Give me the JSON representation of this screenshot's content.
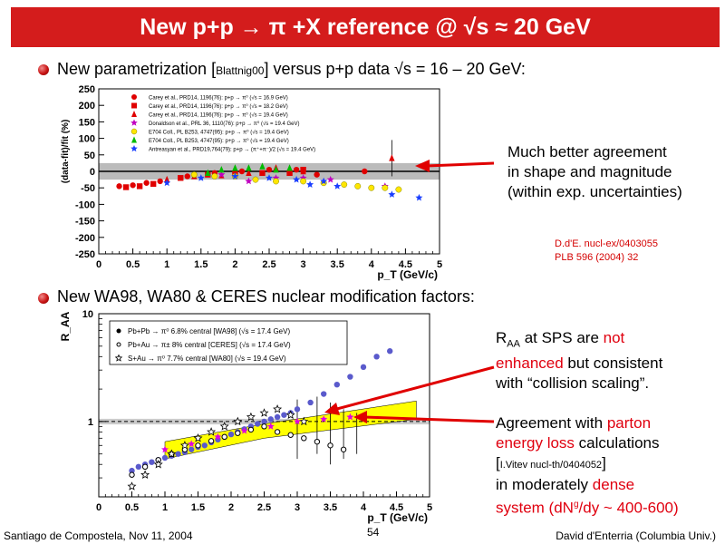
{
  "title": "New p+p → π +X reference @ √s ≈ 20 GeV",
  "bullets": [
    {
      "pre": "New parametrization [",
      "cite": "Blattnig00",
      "post": "] versus p+p data √s = 16 – 20 GeV:"
    },
    {
      "text": "New WA98, WA80 & CERES nuclear modification factors:"
    }
  ],
  "note1": [
    "Much better agreement",
    "in shape and magnitude",
    "(within exp. uncertainties)"
  ],
  "refs": [
    "D.d'E. nucl-ex/0403055",
    "PLB 596 (2004) 32"
  ],
  "note2": {
    "l1_a": "R",
    "l1_sub": "AA",
    "l1_b": " at SPS are ",
    "l1_red": "not",
    "l2_red": "enhanced",
    "l2_b": " but consistent",
    "l3": "with “collision scaling”."
  },
  "note3": {
    "l1_a": "Agreement with ",
    "l1_red": "parton",
    "l2_red": "energy loss",
    "l2_b": " calculations",
    "l3_a": "[",
    "l3_small": "I.Vitev nucl-th/0404052",
    "l3_b": "]",
    "l4_a": "in moderately ",
    "l4_red": "dense",
    "l5_red": "system (dN",
    "l5_sup": "g",
    "l5_red2": "/dy ~ 400-600)"
  },
  "footer": {
    "left": "Santiago de Compostela, Nov 11, 2004",
    "page": "54",
    "right": "David d'Enterria (Columbia Univ.)"
  },
  "colors": {
    "title_bg": "#d41c1c",
    "accent_red": "#e0000f",
    "band_grey": "#bbbbbb",
    "band_yellow": "#ffff00"
  },
  "chart_data": [
    {
      "type": "scatter",
      "xlabel": "p_T (GeV/c)",
      "ylabel": "(data-fit)/fit (%)",
      "xlim": [
        0,
        5
      ],
      "ylim": [
        -250,
        250
      ],
      "xticks": [
        "0",
        "0.5",
        "1",
        "1.5",
        "2",
        "2.5",
        "3",
        "3.5",
        "4",
        "4.5",
        "5"
      ],
      "yticks": [
        "250",
        "200",
        "150",
        "100",
        "50",
        "0",
        "-50",
        "-100",
        "-150",
        "-200",
        "-250"
      ],
      "band": [
        -25,
        25
      ],
      "legend": [
        "Carey et al., PRD14, 1196(76): p+p → π⁰ (√s = 16.9 GeV)",
        "Carey et al., PRD14, 1196(76): p+p → π⁰ (√s = 18.2 GeV)",
        "Carey et al., PRD14, 1196(76): p+p → π⁰ (√s = 19.4 GeV)",
        "Donaldson et al., PRL 36, 1110(76): p+p → π⁰ (√s = 19.4 GeV)",
        "E704 Coll., PL B253, 4747(95): p+p → π⁰ (√s = 19.4 GeV)",
        "E704 Coll., PL B253, 4747(95): p+p → π⁰ (√s = 19.4 GeV)",
        "Antreasyan et al., PRD19,764(79): p+p → (π⁺+π⁻)/2 (√s = 19.4 GeV)"
      ],
      "series": [
        {
          "name": "Carey 16.9",
          "marker": "circle",
          "color": "#e00000",
          "points": [
            [
              0.3,
              -45
            ],
            [
              0.5,
              -42
            ],
            [
              0.7,
              -35
            ],
            [
              0.9,
              -30
            ],
            [
              1.3,
              -15
            ],
            [
              1.7,
              -5
            ],
            [
              2.1,
              0
            ],
            [
              2.5,
              5
            ],
            [
              2.9,
              5
            ],
            [
              3.2,
              -10
            ],
            [
              3.9,
              0
            ]
          ]
        },
        {
          "name": "Carey 18.2",
          "marker": "square",
          "color": "#e00000",
          "points": [
            [
              0.4,
              -48
            ],
            [
              0.6,
              -45
            ],
            [
              0.8,
              -38
            ],
            [
              1.2,
              -20
            ],
            [
              1.6,
              -10
            ],
            [
              2.0,
              -8
            ],
            [
              2.4,
              -5
            ],
            [
              2.8,
              -5
            ],
            [
              3.0,
              5
            ]
          ]
        },
        {
          "name": "Carey 19.4",
          "marker": "triangle",
          "color": "#e00000",
          "points": [
            [
              1.0,
              -25
            ],
            [
              1.4,
              -15
            ],
            [
              1.8,
              -12
            ],
            [
              2.2,
              -5
            ],
            [
              2.6,
              10
            ],
            [
              3.0,
              0
            ],
            [
              4.3,
              40
            ]
          ]
        },
        {
          "name": "Donaldson",
          "marker": "star",
          "color": "#c000c0",
          "points": [
            [
              1.8,
              -10
            ],
            [
              2.2,
              -30
            ],
            [
              2.6,
              -20
            ],
            [
              3.0,
              -20
            ],
            [
              3.4,
              -25
            ],
            [
              4.2,
              -45
            ]
          ]
        },
        {
          "name": "E704 a",
          "marker": "circle",
          "color": "#ffe600",
          "points": [
            [
              1.4,
              -10
            ],
            [
              1.7,
              -15
            ],
            [
              2.0,
              -15
            ],
            [
              2.3,
              -25
            ],
            [
              2.6,
              -30
            ],
            [
              3.0,
              -30
            ],
            [
              3.3,
              -35
            ],
            [
              3.6,
              -40
            ],
            [
              3.8,
              -45
            ],
            [
              4.0,
              -50
            ],
            [
              4.2,
              -50
            ],
            [
              4.4,
              -55
            ]
          ]
        },
        {
          "name": "E704 b",
          "marker": "triangle",
          "color": "#00bb00",
          "points": [
            [
              1.6,
              -5
            ],
            [
              1.8,
              5
            ],
            [
              2.0,
              10
            ],
            [
              2.2,
              10
            ],
            [
              2.4,
              15
            ],
            [
              2.6,
              5
            ],
            [
              2.8,
              10
            ]
          ]
        },
        {
          "name": "Antreasyan",
          "marker": "star",
          "color": "#1a3fff",
          "points": [
            [
              1.0,
              -35
            ],
            [
              1.5,
              -20
            ],
            [
              2.0,
              -15
            ],
            [
              2.5,
              -20
            ],
            [
              2.9,
              -25
            ],
            [
              3.1,
              -40
            ],
            [
              3.3,
              -30
            ],
            [
              3.5,
              -45
            ],
            [
              4.3,
              -70
            ],
            [
              4.7,
              -80
            ]
          ]
        }
      ]
    },
    {
      "type": "scatter",
      "xlabel": "p_T (GeV/c)",
      "ylabel": "R_AA",
      "xlim": [
        0,
        5
      ],
      "ylog": true,
      "xticks": [
        "0",
        "0.5",
        "1",
        "1.5",
        "2",
        "2.5",
        "3",
        "3.5",
        "4",
        "4.5",
        "5"
      ],
      "yticks": [
        "10",
        "1"
      ],
      "legend": [
        "Pb+Pb → π⁰ 6.8% central [WA98] (√s = 17.4 GeV)",
        "Pb+Au → π± 8% central [CERES] (√s = 17.4 GeV)",
        "S+Au → π⁰ 7.7% central [WA80] (√s = 19.4 GeV)"
      ],
      "series": [
        {
          "name": "WA98",
          "marker": "circle",
          "color": "#5a5acc",
          "points": [
            [
              0.5,
              0.35
            ],
            [
              0.6,
              0.38
            ],
            [
              0.7,
              0.4
            ],
            [
              0.8,
              0.42
            ],
            [
              0.9,
              0.44
            ],
            [
              1.0,
              0.46
            ],
            [
              1.1,
              0.48
            ],
            [
              1.2,
              0.5
            ],
            [
              1.3,
              0.52
            ],
            [
              1.4,
              0.55
            ],
            [
              1.5,
              0.58
            ],
            [
              1.6,
              0.6
            ],
            [
              1.7,
              0.64
            ],
            [
              1.8,
              0.68
            ],
            [
              1.9,
              0.72
            ],
            [
              2.0,
              0.76
            ],
            [
              2.1,
              0.8
            ],
            [
              2.2,
              0.85
            ],
            [
              2.3,
              0.9
            ],
            [
              2.4,
              0.95
            ],
            [
              2.5,
              1.0
            ],
            [
              2.6,
              1.05
            ],
            [
              2.7,
              1.1
            ],
            [
              2.8,
              1.15
            ],
            [
              2.9,
              1.2
            ],
            [
              3.0,
              1.3
            ],
            [
              3.2,
              1.5
            ],
            [
              3.4,
              1.8
            ],
            [
              3.6,
              2.2
            ],
            [
              3.8,
              2.6
            ],
            [
              4.0,
              3.2
            ],
            [
              4.2,
              4.0
            ],
            [
              4.4,
              4.5
            ]
          ]
        },
        {
          "name": "CERES",
          "marker": "open-circle",
          "color": "#000000",
          "points": [
            [
              0.5,
              0.32
            ],
            [
              0.7,
              0.38
            ],
            [
              0.9,
              0.44
            ],
            [
              1.1,
              0.5
            ],
            [
              1.3,
              0.55
            ],
            [
              1.5,
              0.6
            ],
            [
              1.7,
              0.66
            ],
            [
              1.9,
              0.72
            ],
            [
              2.1,
              0.78
            ],
            [
              2.3,
              0.84
            ],
            [
              2.5,
              0.9
            ],
            [
              2.7,
              0.8
            ],
            [
              2.9,
              0.75
            ],
            [
              3.1,
              0.7
            ],
            [
              3.3,
              0.65
            ],
            [
              3.5,
              0.6
            ],
            [
              3.7,
              0.55
            ]
          ]
        },
        {
          "name": "WA80",
          "marker": "open-star",
          "color": "#000000",
          "points": [
            [
              0.5,
              0.25
            ],
            [
              0.7,
              0.32
            ],
            [
              0.9,
              0.4
            ],
            [
              1.1,
              0.5
            ],
            [
              1.3,
              0.6
            ],
            [
              1.5,
              0.7
            ],
            [
              1.7,
              0.8
            ],
            [
              1.9,
              0.9
            ],
            [
              2.1,
              1.0
            ],
            [
              2.3,
              1.1
            ],
            [
              2.5,
              1.2
            ],
            [
              2.7,
              1.3
            ],
            [
              2.9,
              1.15
            ],
            [
              3.1,
              1.0
            ]
          ]
        },
        {
          "name": "Vitev",
          "marker": "star",
          "color": "#e000e0",
          "points": [
            [
              1.0,
              0.55
            ],
            [
              1.4,
              0.62
            ],
            [
              1.8,
              0.72
            ],
            [
              2.2,
              0.82
            ],
            [
              2.6,
              0.9
            ],
            [
              3.0,
              1.0
            ],
            [
              3.4,
              1.05
            ],
            [
              3.8,
              1.1
            ]
          ]
        }
      ]
    }
  ]
}
